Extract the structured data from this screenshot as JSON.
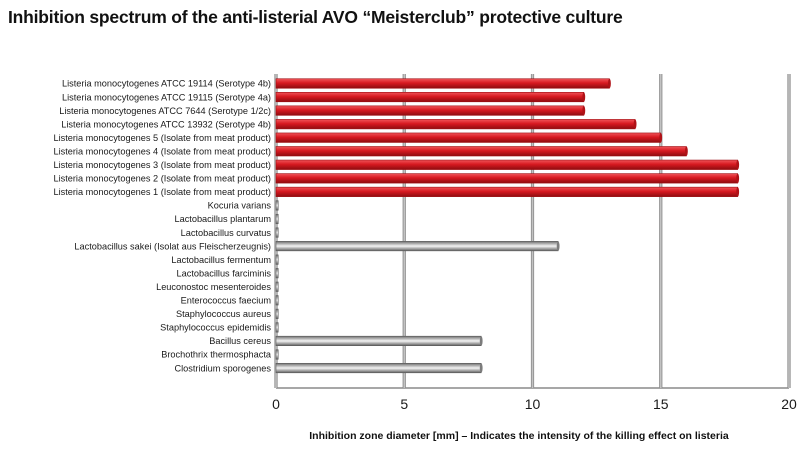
{
  "chart_data": {
    "type": "bar",
    "orientation": "horizontal",
    "title": "Inhibition spectrum of the anti-listerial AVO “Meisterclub” protective culture",
    "xlabel": "Inhibition zone diameter [mm] – Indicates the intensity of the killing effect on listeria",
    "ylabel": "",
    "xlim": [
      0,
      20
    ],
    "xticks": [
      0,
      5,
      10,
      15,
      20
    ],
    "grid": true,
    "legend": "none",
    "categories": [
      "Listeria monocytogenes ATCC 19114 (Serotype 4b)",
      "Listeria monocytogenes ATCC 19115 (Serotype 4a)",
      "Listeria monocytogenes ATCC 7644 (Serotype 1/2c)",
      "Listeria monocytogenes ATCC 13932 (Serotype 4b)",
      "Listeria monocytogenes 5 (Isolate from meat product)",
      "Listeria monocytogenes 4 (Isolate from meat product)",
      "Listeria monocytogenes 3 (Isolate from meat product)",
      "Listeria monocytogenes 2 (Isolate from meat product)",
      "Listeria monocytogenes 1 (Isolate from meat product)",
      "Kocuria varians",
      "Lactobacillus plantarum",
      "Lactobacillus curvatus",
      "Lactobacillus sakei (Isolat aus Fleischerzeugnis)",
      "Lactobacillus fermentum",
      "Lactobacillus farciminis",
      "Leuconostoc mesenteroides",
      "Enterococcus faecium",
      "Staphylococcus aureus",
      "Staphylococcus epidemidis",
      "Bacillus cereus",
      "Brochothrix thermosphacta",
      "Clostridium sporogenes"
    ],
    "values": [
      13,
      12,
      12,
      14,
      15,
      16,
      18,
      18,
      18,
      0,
      0,
      0,
      11,
      0,
      0,
      0,
      0,
      0,
      0,
      8,
      0,
      8
    ],
    "bar_colors": [
      "red",
      "red",
      "red",
      "red",
      "red",
      "red",
      "red",
      "red",
      "red",
      "grey",
      "grey",
      "grey",
      "grey",
      "grey",
      "grey",
      "grey",
      "grey",
      "grey",
      "grey",
      "grey",
      "grey",
      "grey"
    ],
    "colors": {
      "red": "#d71920",
      "red_dark": "#9e0e12",
      "grey": "#8c8c8c",
      "grey_light": "#f2f2f2",
      "grid": "#9a9a9a",
      "axis": "#555555"
    }
  }
}
